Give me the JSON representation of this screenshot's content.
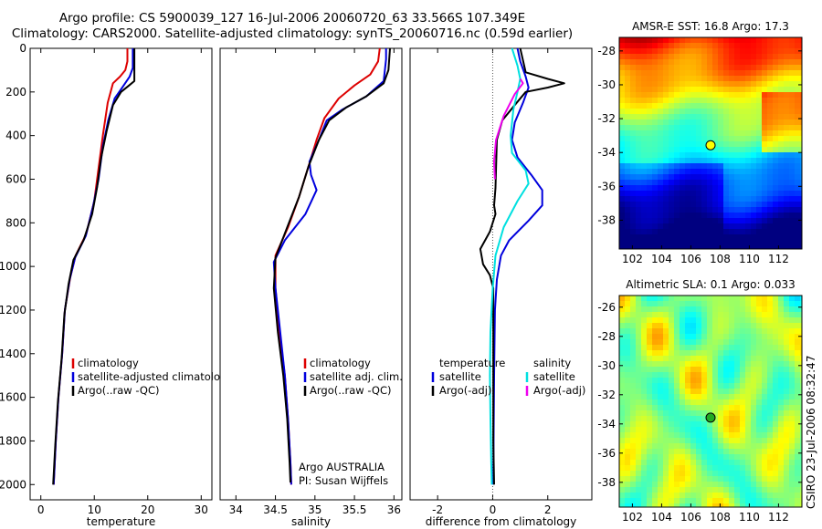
{
  "title_line1": "Argo profile: CS 5900039_127 16-Jul-2006 20060720_63 33.566S 107.349E",
  "title_line2": "Climatology: CARS2000. Satellite-adjusted climatology: synTS_20060716.nc (0.59d earlier)",
  "side_text": "CSIRO 23-Jul-2006 08:32:47",
  "colors": {
    "climatology": "#dd0000",
    "satellite": "#0000dd",
    "argo": "#000000",
    "satellite_diff": "#00e0e0",
    "argo_diff_salinity": "#ee00ee"
  },
  "chart_data": [
    {
      "id": "temperature",
      "type": "line",
      "xlabel": "temperature",
      "ylabel": "",
      "xlim": [
        -2,
        32
      ],
      "ylim": [
        2070,
        0
      ],
      "y_reversed": true,
      "xticks": [
        0,
        10,
        20,
        30
      ],
      "yticks": [
        0,
        200,
        400,
        600,
        800,
        1000,
        1200,
        1400,
        1600,
        1800,
        2000
      ],
      "legend": {
        "placement": "lower-right",
        "entries": [
          "climatology",
          "satellite-adjusted climatology",
          "Argo(..raw -QC)"
        ]
      },
      "series": [
        {
          "name": "climatology",
          "color": "climatology",
          "points": [
            [
              16.2,
              0
            ],
            [
              16.2,
              60
            ],
            [
              15.8,
              100
            ],
            [
              14.8,
              130
            ],
            [
              13.5,
              160
            ],
            [
              12.5,
              250
            ],
            [
              11.6,
              400
            ],
            [
              10.8,
              550
            ],
            [
              10,
              700
            ],
            [
              8.5,
              850
            ],
            [
              6.5,
              950
            ],
            [
              5.5,
              1050
            ],
            [
              4.5,
              1200
            ],
            [
              4,
              1400
            ],
            [
              3.3,
              1600
            ],
            [
              2.8,
              1800
            ],
            [
              2.4,
              2000
            ]
          ]
        },
        {
          "name": "satellite-adjusted climatology",
          "color": "satellite",
          "points": [
            [
              17.2,
              0
            ],
            [
              17.2,
              90
            ],
            [
              16.6,
              130
            ],
            [
              15.5,
              170
            ],
            [
              13.8,
              230
            ],
            [
              12.6,
              330
            ],
            [
              11.6,
              450
            ],
            [
              10.8,
              600
            ],
            [
              9.8,
              720
            ],
            [
              8.4,
              860
            ],
            [
              6.4,
              960
            ],
            [
              5.4,
              1060
            ],
            [
              4.5,
              1200
            ],
            [
              4,
              1400
            ],
            [
              3.3,
              1600
            ],
            [
              2.8,
              1800
            ],
            [
              2.4,
              2000
            ]
          ]
        },
        {
          "name": "Argo(..raw -QC)",
          "color": "argo",
          "points": [
            [
              17.5,
              0
            ],
            [
              17.5,
              150
            ],
            [
              16.5,
              170
            ],
            [
              15,
              200
            ],
            [
              13.5,
              260
            ],
            [
              12.3,
              380
            ],
            [
              11.3,
              500
            ],
            [
              10.5,
              640
            ],
            [
              9.6,
              760
            ],
            [
              8,
              880
            ],
            [
              6.1,
              970
            ],
            [
              5.2,
              1080
            ],
            [
              4.4,
              1220
            ],
            [
              3.9,
              1420
            ],
            [
              3.2,
              1620
            ],
            [
              2.7,
              1820
            ],
            [
              2.3,
              2000
            ]
          ]
        }
      ]
    },
    {
      "id": "salinity",
      "type": "line",
      "xlabel": "salinity",
      "ylabel": "",
      "xlim": [
        33.8,
        36.1
      ],
      "ylim": [
        2070,
        0
      ],
      "y_reversed": true,
      "xticks": [
        34,
        34.5,
        35,
        35.5,
        36
      ],
      "yticks": [],
      "legend": {
        "placement": "lower-right",
        "entries": [
          "climatology",
          "satellite adj. clim.",
          "Argo(..raw -QC)"
        ]
      },
      "annotation": [
        "Argo AUSTRALIA",
        "PI: Susan Wijffels"
      ],
      "series": [
        {
          "name": "climatology",
          "color": "climatology",
          "points": [
            [
              35.82,
              0
            ],
            [
              35.8,
              60
            ],
            [
              35.7,
              120
            ],
            [
              35.5,
              170
            ],
            [
              35.3,
              230
            ],
            [
              35.12,
              320
            ],
            [
              35.02,
              420
            ],
            [
              34.92,
              540
            ],
            [
              34.8,
              680
            ],
            [
              34.66,
              820
            ],
            [
              34.5,
              950
            ],
            [
              34.5,
              1100
            ],
            [
              34.55,
              1300
            ],
            [
              34.62,
              1500
            ],
            [
              34.66,
              1700
            ],
            [
              34.69,
              1900
            ],
            [
              34.7,
              2000
            ]
          ]
        },
        {
          "name": "satellite adj. clim.",
          "color": "satellite",
          "points": [
            [
              35.9,
              0
            ],
            [
              35.9,
              50
            ],
            [
              35.87,
              150
            ],
            [
              35.65,
              220
            ],
            [
              35.35,
              280
            ],
            [
              35.15,
              330
            ],
            [
              35.05,
              420
            ],
            [
              34.93,
              520
            ],
            [
              34.95,
              580
            ],
            [
              35.02,
              650
            ],
            [
              34.88,
              760
            ],
            [
              34.62,
              880
            ],
            [
              34.48,
              980
            ],
            [
              34.5,
              1100
            ],
            [
              34.56,
              1300
            ],
            [
              34.62,
              1500
            ],
            [
              34.66,
              1700
            ],
            [
              34.69,
              1900
            ],
            [
              34.7,
              2000
            ]
          ]
        },
        {
          "name": "Argo(..raw -QC)",
          "color": "argo",
          "points": [
            [
              35.95,
              0
            ],
            [
              35.93,
              100
            ],
            [
              35.87,
              160
            ],
            [
              35.65,
              220
            ],
            [
              35.4,
              270
            ],
            [
              35.18,
              330
            ],
            [
              35.05,
              420
            ],
            [
              34.92,
              540
            ],
            [
              34.8,
              680
            ],
            [
              34.65,
              820
            ],
            [
              34.5,
              960
            ],
            [
              34.48,
              1100
            ],
            [
              34.53,
              1300
            ],
            [
              34.6,
              1500
            ],
            [
              34.65,
              1700
            ],
            [
              34.68,
              1900
            ],
            [
              34.69,
              1990
            ]
          ]
        }
      ]
    },
    {
      "id": "difference",
      "type": "line",
      "xlabel": "difference from climatology",
      "ylabel": "",
      "xlim": [
        -3,
        3.6
      ],
      "ylim": [
        2070,
        0
      ],
      "y_reversed": true,
      "xticks": [
        -2,
        0,
        2
      ],
      "yticks": [],
      "zero_line": true,
      "legend": {
        "placement": "lower-center",
        "headers": [
          "temperature",
          "salinity"
        ],
        "entries": [
          "satellite",
          "Argo(-adj)",
          "satellite",
          "Argo(-adj)"
        ]
      },
      "series": [
        {
          "name": "satellite",
          "group": "temperature",
          "color": "satellite",
          "points": [
            [
              0.9,
              0
            ],
            [
              1.0,
              60
            ],
            [
              1.2,
              130
            ],
            [
              1.3,
              180
            ],
            [
              1.1,
              250
            ],
            [
              0.8,
              340
            ],
            [
              0.7,
              420
            ],
            [
              0.9,
              500
            ],
            [
              1.4,
              580
            ],
            [
              1.8,
              650
            ],
            [
              1.8,
              720
            ],
            [
              1.3,
              790
            ],
            [
              0.6,
              880
            ],
            [
              0.3,
              950
            ],
            [
              0.15,
              1060
            ],
            [
              0.08,
              1200
            ],
            [
              0.05,
              1500
            ],
            [
              0.03,
              1800
            ],
            [
              0.02,
              2000
            ]
          ]
        },
        {
          "name": "Argo(-adj)",
          "group": "temperature",
          "color": "argo",
          "points": [
            [
              1.0,
              0
            ],
            [
              1.2,
              110
            ],
            [
              2.0,
              140
            ],
            [
              2.6,
              160
            ],
            [
              2.0,
              180
            ],
            [
              1.2,
              200
            ],
            [
              0.8,
              260
            ],
            [
              0.35,
              330
            ],
            [
              0.15,
              420
            ],
            [
              0.12,
              550
            ],
            [
              0.1,
              640
            ],
            [
              0.05,
              720
            ],
            [
              0.1,
              760
            ],
            [
              -0.1,
              840
            ],
            [
              -0.45,
              920
            ],
            [
              -0.35,
              990
            ],
            [
              -0.1,
              1040
            ],
            [
              0.02,
              1100
            ],
            [
              0.02,
              1300
            ],
            [
              0.02,
              1600
            ],
            [
              0.02,
              1800
            ],
            [
              0.05,
              2000
            ]
          ]
        },
        {
          "name": "satellite",
          "group": "salinity",
          "color": "satellite_diff",
          "points": [
            [
              0.7,
              0
            ],
            [
              0.9,
              80
            ],
            [
              1.0,
              140
            ],
            [
              0.9,
              200
            ],
            [
              0.75,
              280
            ],
            [
              0.65,
              400
            ],
            [
              0.7,
              480
            ],
            [
              1.2,
              560
            ],
            [
              1.3,
              620
            ],
            [
              0.9,
              700
            ],
            [
              0.4,
              820
            ],
            [
              0.1,
              950
            ],
            [
              0,
              1100
            ],
            [
              -0.08,
              1300
            ],
            [
              -0.1,
              1500
            ],
            [
              -0.08,
              1700
            ],
            [
              -0.05,
              1900
            ],
            [
              -0.03,
              2000
            ]
          ]
        },
        {
          "name": "Argo(-adj)",
          "group": "salinity",
          "color": "argo_diff_salinity",
          "points": [
            [
              1.0,
              140
            ],
            [
              1.1,
              160
            ],
            [
              0.8,
              210
            ],
            [
              0.4,
              310
            ],
            [
              0.12,
              420
            ],
            [
              0.05,
              520
            ],
            [
              0.08,
              600
            ]
          ]
        }
      ]
    },
    {
      "id": "sst_map",
      "type": "heatmap",
      "title": "AMSR-E SST: 16.8 Argo: 17.3",
      "xlim": [
        101.1,
        113.6
      ],
      "ylim": [
        -39.7,
        -27.2
      ],
      "xticks": [
        102,
        104,
        106,
        108,
        110,
        112
      ],
      "yticks": [
        -28,
        -30,
        -32,
        -34,
        -36,
        -38
      ],
      "marker": {
        "lon": 107.35,
        "lat": -33.57,
        "fill": "#ffff00"
      }
    },
    {
      "id": "sla_map",
      "type": "heatmap",
      "title": "Altimetric SLA: 0.1 Argo: 0.033",
      "xlim": [
        101.1,
        113.6
      ],
      "ylim": [
        -39.7,
        -25.2
      ],
      "xticks": [
        102,
        104,
        106,
        108,
        110,
        112
      ],
      "yticks": [
        -26,
        -28,
        -30,
        -32,
        -34,
        -36,
        -38
      ],
      "marker": {
        "lon": 107.35,
        "lat": -33.57,
        "fill": "#22aa22"
      }
    }
  ]
}
